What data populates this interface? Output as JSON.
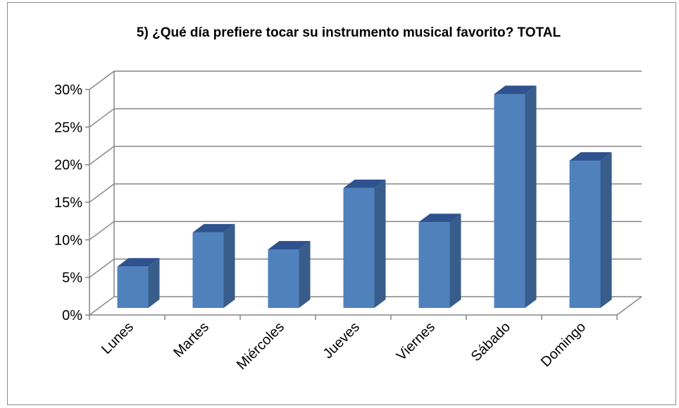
{
  "chart_data": {
    "type": "bar",
    "style": "3d-column",
    "title": "5) ¿Qué día prefiere tocar su instrumento musical favorito? TOTAL",
    "xlabel": "",
    "ylabel": "",
    "categories": [
      "Lunes",
      "Martes",
      "Miércoles",
      "Jueves",
      "Viernes",
      "Sábado",
      "Domingo"
    ],
    "values": [
      5.6,
      10.2,
      7.9,
      16.2,
      11.6,
      28.9,
      19.9
    ],
    "value_unit": "%",
    "ylim": [
      0,
      30
    ],
    "yticks": [
      0,
      5,
      10,
      15,
      20,
      25,
      30
    ],
    "ytick_labels": [
      "0%",
      "5%",
      "10%",
      "15%",
      "20%",
      "25%",
      "30%"
    ],
    "grid": true,
    "legend": "none",
    "colors": {
      "bar_front": "#4f81bd",
      "bar_side": "#385d8a",
      "bar_top": "#2f528f",
      "grid": "#868686",
      "wall": "#ffffff"
    }
  }
}
